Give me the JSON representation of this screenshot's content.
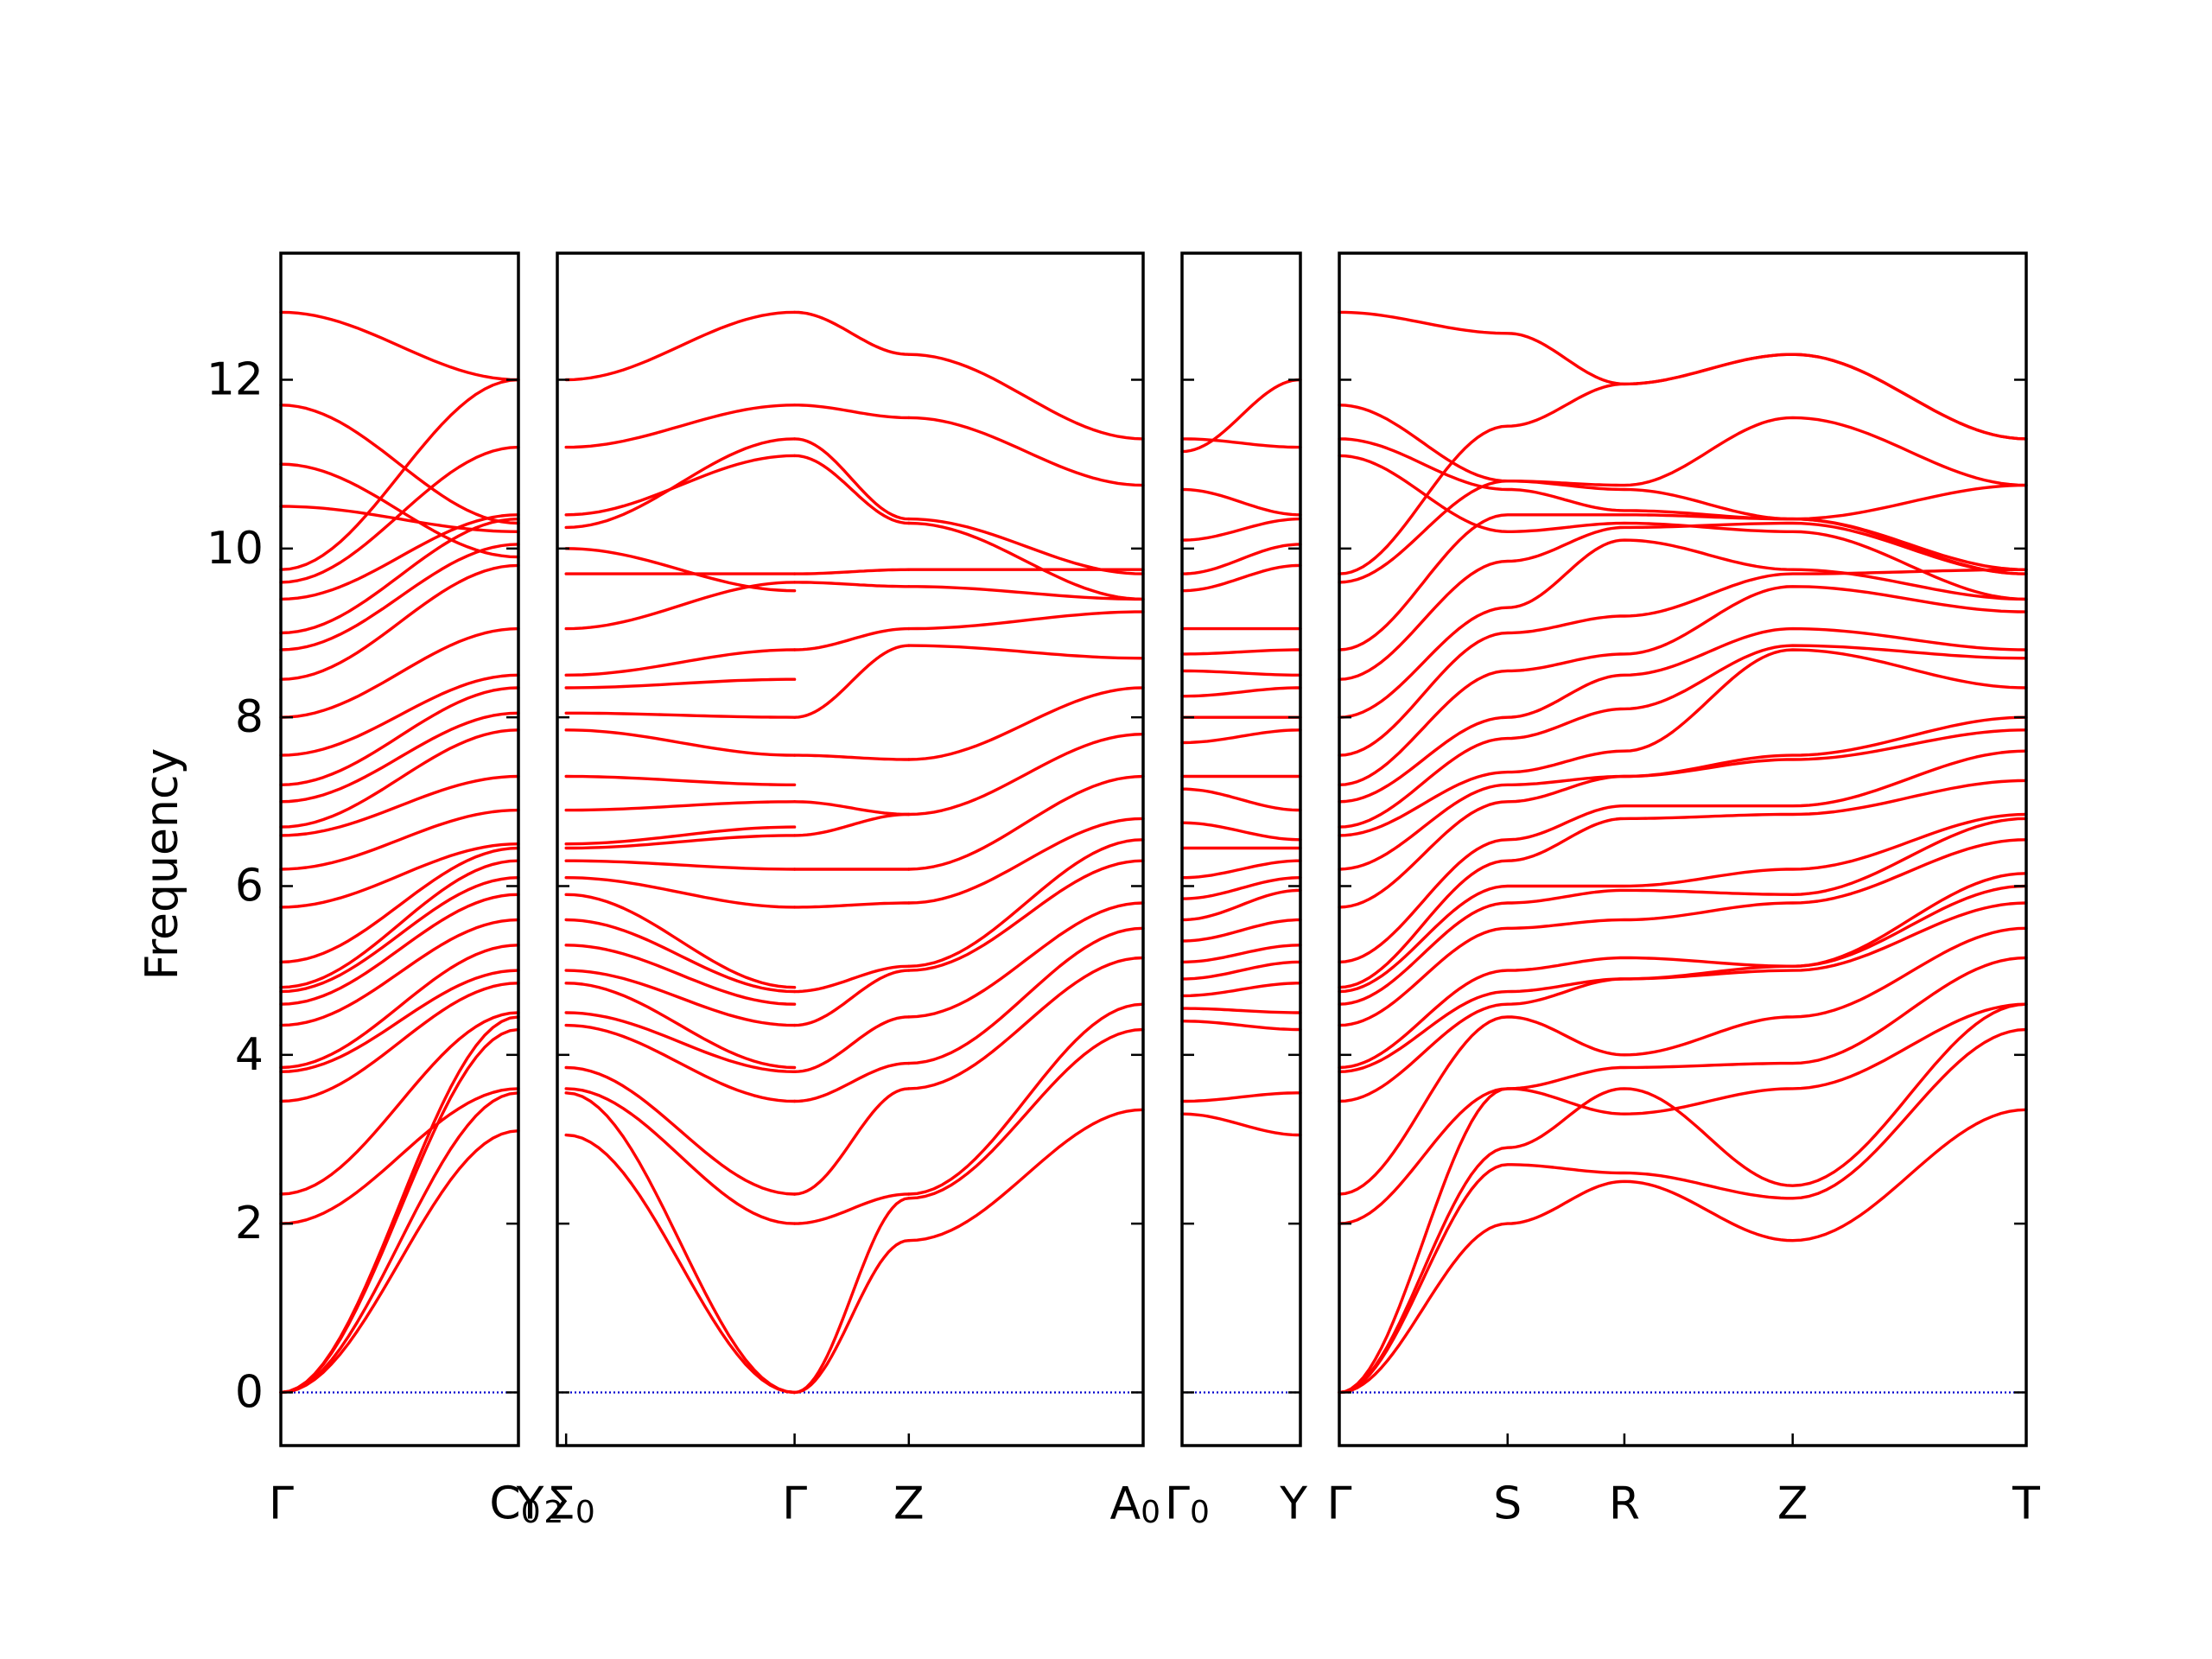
{
  "chart_data": {
    "type": "line",
    "title": "",
    "ylabel": "Frequency",
    "xlabel": "",
    "ylim": [
      -0.63,
      13.5
    ],
    "yticks": [
      0,
      2,
      4,
      6,
      8,
      10,
      12
    ],
    "grid": false,
    "colors": {
      "bands": "#ff0000",
      "zero_line": "#0000cd",
      "frame": "#000000"
    },
    "panels": [
      {
        "x_labels": [
          "Γ",
          "C_0"
        ],
        "bands": [
          [
            0.0,
            3.1
          ],
          [
            0.0,
            3.55
          ],
          [
            0.0,
            4.3
          ],
          [
            0.0,
            4.45
          ],
          [
            2.0,
            3.6
          ],
          [
            2.35,
            4.5
          ],
          [
            3.45,
            4.85
          ],
          [
            3.8,
            5.0
          ],
          [
            3.85,
            5.3
          ],
          [
            4.35,
            5.6
          ],
          [
            4.6,
            5.9
          ],
          [
            4.75,
            6.1
          ],
          [
            4.8,
            6.3
          ],
          [
            5.1,
            6.45
          ],
          [
            5.75,
            6.5
          ],
          [
            6.2,
            6.9
          ],
          [
            6.6,
            7.3
          ],
          [
            6.7,
            7.85
          ],
          [
            7.0,
            8.05
          ],
          [
            7.2,
            8.35
          ],
          [
            7.55,
            8.5
          ],
          [
            8.0,
            9.05
          ],
          [
            8.45,
            9.8
          ],
          [
            8.8,
            10.05
          ],
          [
            9.0,
            10.35
          ],
          [
            9.4,
            10.4
          ],
          [
            9.6,
            11.2
          ],
          [
            9.75,
            12.0
          ],
          [
            10.5,
            10.2
          ],
          [
            11.0,
            9.9
          ],
          [
            11.7,
            10.3
          ],
          [
            12.8,
            12.0
          ]
        ]
      },
      {
        "x_labels": [
          "Y_2",
          "Σ_0",
          "Γ",
          "Z",
          "A_0"
        ],
        "segments": [
          {
            "from": "Σ_0",
            "to": "Γ",
            "bands": [
              [
                3.05,
                0.0
              ],
              [
                3.55,
                0.0
              ],
              [
                3.6,
                2.0
              ],
              [
                3.85,
                2.35
              ],
              [
                4.35,
                3.45
              ],
              [
                4.5,
                3.8
              ],
              [
                4.85,
                3.85
              ],
              [
                5.0,
                4.35
              ],
              [
                5.3,
                4.6
              ],
              [
                5.6,
                4.75
              ],
              [
                5.9,
                4.8
              ],
              [
                6.1,
                5.75
              ],
              [
                6.3,
                6.2
              ],
              [
                6.45,
                6.6
              ],
              [
                6.5,
                6.7
              ],
              [
                6.9,
                7.0
              ],
              [
                7.3,
                7.2
              ],
              [
                7.85,
                7.55
              ],
              [
                8.05,
                8.0
              ],
              [
                8.35,
                8.45
              ],
              [
                8.5,
                8.8
              ],
              [
                9.05,
                9.6
              ],
              [
                9.7,
                9.7
              ],
              [
                10.0,
                9.5
              ],
              [
                10.25,
                11.3
              ],
              [
                10.4,
                11.1
              ],
              [
                11.2,
                11.7
              ],
              [
                12.0,
                12.8
              ]
            ]
          },
          {
            "from": "Γ",
            "to": "Z",
            "bands": [
              [
                0.0,
                1.8
              ],
              [
                0.0,
                2.3
              ],
              [
                2.0,
                2.35
              ],
              [
                2.35,
                3.6
              ],
              [
                3.45,
                3.9
              ],
              [
                3.8,
                4.45
              ],
              [
                4.35,
                5.0
              ],
              [
                4.75,
                5.05
              ],
              [
                5.75,
                5.8
              ],
              [
                6.2,
                6.2
              ],
              [
                6.6,
                6.85
              ],
              [
                7.0,
                6.85
              ],
              [
                7.55,
                7.5
              ],
              [
                8.0,
                8.85
              ],
              [
                8.8,
                9.05
              ],
              [
                9.6,
                9.55
              ],
              [
                9.7,
                9.75
              ],
              [
                11.1,
                10.3
              ],
              [
                11.3,
                10.35
              ],
              [
                11.7,
                11.55
              ],
              [
                12.8,
                12.3
              ]
            ]
          },
          {
            "from": "Z",
            "to": "A_0",
            "bands": [
              [
                1.8,
                3.35
              ],
              [
                2.3,
                4.3
              ],
              [
                2.35,
                4.6
              ],
              [
                3.6,
                5.15
              ],
              [
                3.9,
                5.5
              ],
              [
                4.45,
                5.8
              ],
              [
                5.0,
                6.3
              ],
              [
                5.05,
                6.55
              ],
              [
                5.8,
                6.8
              ],
              [
                6.2,
                7.3
              ],
              [
                6.85,
                7.8
              ],
              [
                7.5,
                8.35
              ],
              [
                8.85,
                8.7
              ],
              [
                9.05,
                9.25
              ],
              [
                9.55,
                9.4
              ],
              [
                9.75,
                9.75
              ],
              [
                10.3,
                9.4
              ],
              [
                10.35,
                9.7
              ],
              [
                11.55,
                10.75
              ],
              [
                12.3,
                11.3
              ]
            ]
          }
        ]
      },
      {
        "x_labels": [
          "Γ_0",
          "Y"
        ],
        "bands": [
          [
            3.3,
            3.05
          ],
          [
            3.45,
            3.55
          ],
          [
            4.4,
            4.3
          ],
          [
            4.55,
            4.5
          ],
          [
            4.7,
            4.85
          ],
          [
            4.9,
            5.1
          ],
          [
            5.1,
            5.3
          ],
          [
            5.35,
            5.6
          ],
          [
            5.6,
            5.95
          ],
          [
            5.85,
            6.1
          ],
          [
            6.1,
            6.3
          ],
          [
            6.45,
            6.45
          ],
          [
            6.75,
            6.55
          ],
          [
            7.15,
            6.9
          ],
          [
            7.3,
            7.3
          ],
          [
            7.7,
            7.85
          ],
          [
            8.0,
            8.0
          ],
          [
            8.25,
            8.35
          ],
          [
            8.55,
            8.5
          ],
          [
            8.75,
            8.8
          ],
          [
            9.05,
            9.05
          ],
          [
            9.5,
            9.8
          ],
          [
            9.7,
            10.05
          ],
          [
            10.1,
            10.35
          ],
          [
            10.7,
            10.4
          ],
          [
            11.3,
            11.2
          ],
          [
            11.15,
            12.0
          ]
        ]
      },
      {
        "x_labels": [
          "Γ",
          "S",
          "R",
          "Z",
          "T"
        ],
        "bands": [
          [
            0.0,
            2.0,
            2.5,
            1.8,
            3.35
          ],
          [
            0.0,
            2.7,
            2.6,
            2.3,
            4.3
          ],
          [
            0.0,
            2.9,
            3.6,
            2.45,
            4.6
          ],
          [
            0.0,
            3.6,
            3.3,
            3.6,
            4.6
          ],
          [
            2.0,
            3.6,
            3.85,
            3.9,
            5.15
          ],
          [
            2.35,
            4.45,
            4.0,
            4.45,
            5.5
          ],
          [
            3.45,
            4.6,
            4.9,
            5.0,
            5.8
          ],
          [
            3.8,
            4.75,
            4.9,
            5.05,
            6.0
          ],
          [
            3.85,
            5.0,
            5.15,
            5.05,
            6.15
          ],
          [
            4.35,
            5.5,
            5.6,
            5.8,
            6.55
          ],
          [
            4.6,
            5.8,
            5.95,
            5.9,
            6.8
          ],
          [
            4.75,
            6.0,
            6.0,
            6.2,
            6.85
          ],
          [
            4.8,
            6.3,
            6.8,
            6.85,
            7.25
          ],
          [
            5.1,
            6.55,
            6.95,
            6.95,
            7.6
          ],
          [
            5.75,
            7.0,
            7.3,
            7.5,
            7.85
          ],
          [
            6.2,
            7.2,
            7.3,
            7.55,
            8.0
          ],
          [
            6.6,
            7.35,
            7.6,
            8.8,
            8.35
          ],
          [
            6.7,
            7.75,
            8.1,
            8.85,
            8.7
          ],
          [
            7.0,
            8.0,
            8.5,
            9.05,
            8.8
          ],
          [
            7.2,
            8.55,
            8.75,
            9.55,
            9.25
          ],
          [
            7.55,
            9.0,
            9.2,
            9.7,
            9.75
          ],
          [
            8.0,
            9.3,
            10.1,
            9.75,
            9.4
          ],
          [
            8.45,
            9.85,
            10.25,
            10.3,
            9.7
          ],
          [
            8.8,
            10.4,
            10.4,
            10.35,
            10.75
          ],
          [
            9.6,
            10.8,
            10.75,
            11.55,
            10.75
          ],
          [
            9.7,
            11.45,
            11.95,
            12.3,
            11.3
          ],
          [
            11.3,
            10.7,
            10.45,
            10.35,
            9.7
          ],
          [
            11.1,
            10.2,
            10.3,
            10.2,
            9.4
          ],
          [
            11.7,
            10.8,
            10.7,
            10.35,
            9.75
          ],
          [
            12.8,
            12.55,
            11.95,
            12.3,
            11.3
          ]
        ]
      }
    ]
  }
}
